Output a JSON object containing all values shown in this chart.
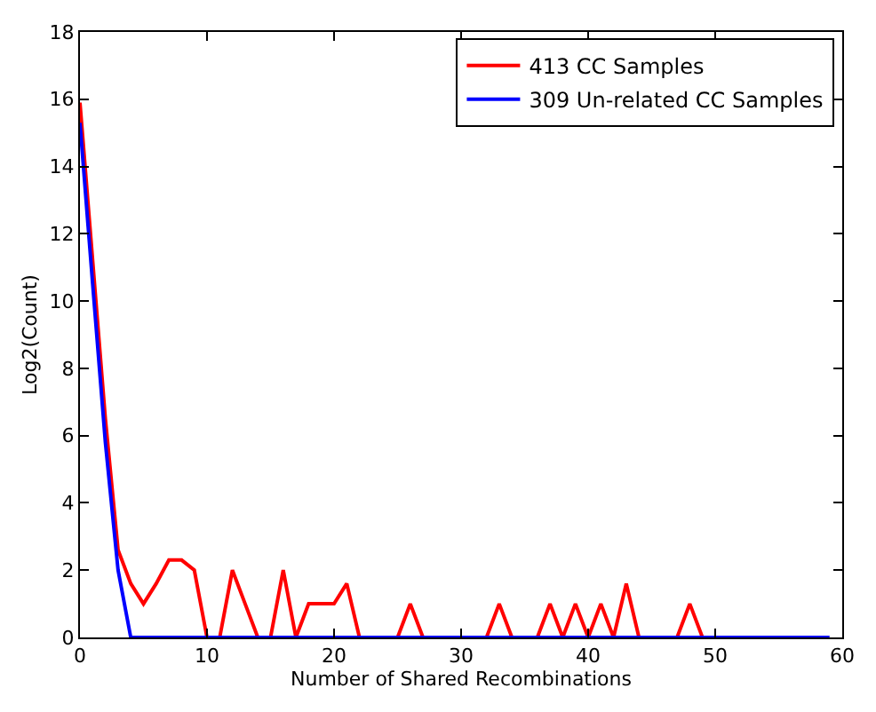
{
  "chart_data": {
    "type": "line",
    "x": [
      0,
      1,
      2,
      3,
      4,
      5,
      6,
      7,
      8,
      9,
      10,
      11,
      12,
      13,
      14,
      15,
      16,
      17,
      18,
      19,
      20,
      21,
      22,
      23,
      24,
      25,
      26,
      27,
      28,
      29,
      30,
      31,
      32,
      33,
      34,
      35,
      36,
      37,
      38,
      39,
      40,
      41,
      42,
      43,
      44,
      45,
      46,
      47,
      48,
      49,
      50,
      51,
      52,
      53,
      54,
      55,
      56,
      57,
      58,
      59
    ],
    "xlabel": "Number of Shared Recombinations",
    "ylabel": "Log2(Count)",
    "xlim": [
      0,
      60
    ],
    "xticks": [
      0,
      10,
      20,
      30,
      40,
      50,
      60
    ],
    "ylim": [
      0,
      18
    ],
    "yticks": [
      0,
      2,
      4,
      6,
      8,
      10,
      12,
      14,
      16,
      18
    ],
    "grid": false,
    "legend": "top right",
    "series": [
      {
        "name": "413 CC Samples",
        "color": "#ff0000",
        "values": [
          15.9,
          11.2,
          6.5,
          2.6,
          1.6,
          1.0,
          1.6,
          2.3,
          2.3,
          2.0,
          0,
          0,
          2.0,
          1.0,
          0,
          0,
          2.0,
          0,
          1.0,
          1.0,
          1.0,
          1.6,
          0,
          0,
          0,
          0,
          1.0,
          0,
          0,
          0,
          0,
          0,
          0,
          1.0,
          0,
          0,
          0,
          1.0,
          0,
          1.0,
          0,
          1.0,
          0,
          1.6,
          0,
          0,
          0,
          0,
          1.0,
          0,
          null,
          null,
          null,
          null,
          null,
          null,
          null,
          null,
          null,
          null
        ]
      },
      {
        "name": "309 Un-related CC Samples",
        "color": "#0000ff",
        "values": [
          15.3,
          10.5,
          5.8,
          2.0,
          0,
          0,
          0,
          0,
          0,
          0,
          0,
          0,
          0,
          0,
          0,
          0,
          0,
          0,
          0,
          0,
          0,
          0,
          0,
          0,
          0,
          0,
          0,
          0,
          0,
          0,
          0,
          0,
          0,
          0,
          0,
          0,
          0,
          0,
          0,
          0,
          0,
          0,
          0,
          0,
          0,
          0,
          0,
          0,
          0,
          0,
          0,
          0,
          0,
          0,
          0,
          0,
          0,
          0,
          0,
          0
        ]
      }
    ]
  }
}
